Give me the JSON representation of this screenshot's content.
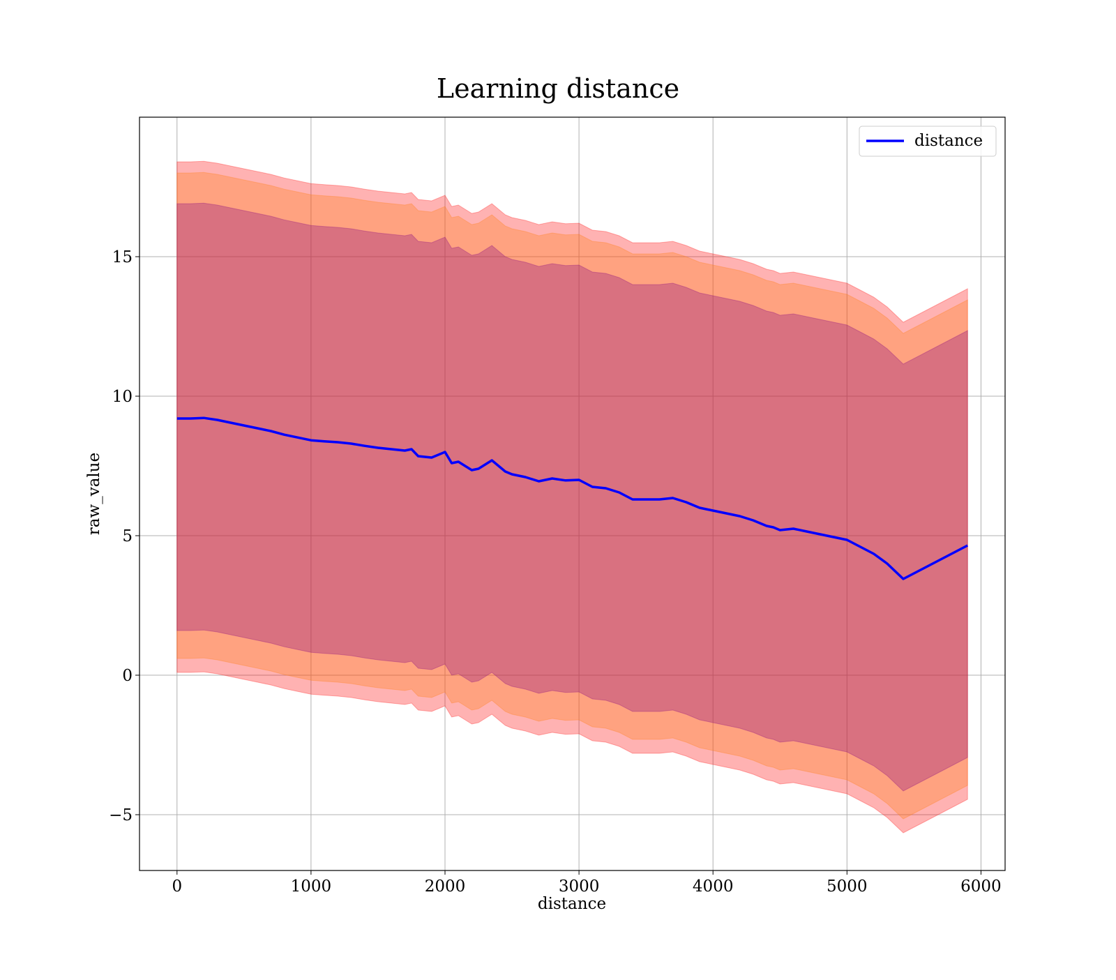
{
  "chart_data": {
    "type": "area",
    "title": "Learning distance",
    "xlabel": "distance",
    "ylabel": "raw_value",
    "xlim": [
      -280,
      6180
    ],
    "ylim": [
      -7,
      20
    ],
    "x_ticks": [
      0,
      1000,
      2000,
      3000,
      4000,
      5000,
      6000
    ],
    "x_tick_labels": [
      "0",
      "1000",
      "2000",
      "3000",
      "4000",
      "5000",
      "6000"
    ],
    "y_ticks": [
      -5,
      0,
      5,
      10,
      15
    ],
    "y_tick_labels": [
      "−5",
      "0",
      "5",
      "10",
      "15"
    ],
    "grid": true,
    "legend": {
      "position": "top-right",
      "entries": [
        "distance"
      ]
    },
    "colors": {
      "line": "#0000ff",
      "band_outer": "#ff0000",
      "band_middle": "#ff7f0e",
      "band_inner": "#800080"
    },
    "series": [
      {
        "name": "distance",
        "x": [
          0,
          100,
          200,
          300,
          400,
          500,
          600,
          700,
          800,
          900,
          1000,
          1100,
          1200,
          1300,
          1400,
          1500,
          1600,
          1700,
          1750,
          1800,
          1900,
          2000,
          2050,
          2100,
          2150,
          2200,
          2250,
          2300,
          2350,
          2400,
          2450,
          2500,
          2600,
          2700,
          2800,
          2900,
          3000,
          3100,
          3200,
          3300,
          3400,
          3500,
          3600,
          3700,
          3800,
          3900,
          4000,
          4100,
          4200,
          4300,
          4400,
          4450,
          4500,
          4600,
          4700,
          4800,
          4900,
          5000,
          5100,
          5200,
          5300,
          5420,
          5600,
          5800,
          5900
        ],
        "values": [
          9.2,
          9.2,
          9.22,
          9.15,
          9.05,
          8.95,
          8.85,
          8.75,
          8.62,
          8.52,
          8.42,
          8.38,
          8.35,
          8.3,
          8.22,
          8.15,
          8.1,
          8.05,
          8.1,
          7.85,
          7.8,
          8.0,
          7.6,
          7.65,
          7.5,
          7.35,
          7.4,
          7.55,
          7.7,
          7.5,
          7.3,
          7.2,
          7.1,
          6.95,
          7.05,
          6.98,
          7.0,
          6.75,
          6.7,
          6.55,
          6.3,
          6.3,
          6.3,
          6.35,
          6.2,
          6.0,
          5.9,
          5.8,
          5.7,
          5.55,
          5.35,
          5.3,
          5.2,
          5.25,
          5.15,
          5.05,
          4.95,
          4.85,
          4.6,
          4.35,
          4.0,
          3.45,
          3.9,
          4.4,
          4.65
        ],
        "band_inner": {
          "lower_offset": 7.6,
          "upper_offset": 7.7
        },
        "band_middle": {
          "lower_offset": 8.6,
          "upper_offset": 8.8
        },
        "band_outer": {
          "lower_offset": 9.1,
          "upper_offset": 9.2
        }
      }
    ]
  }
}
